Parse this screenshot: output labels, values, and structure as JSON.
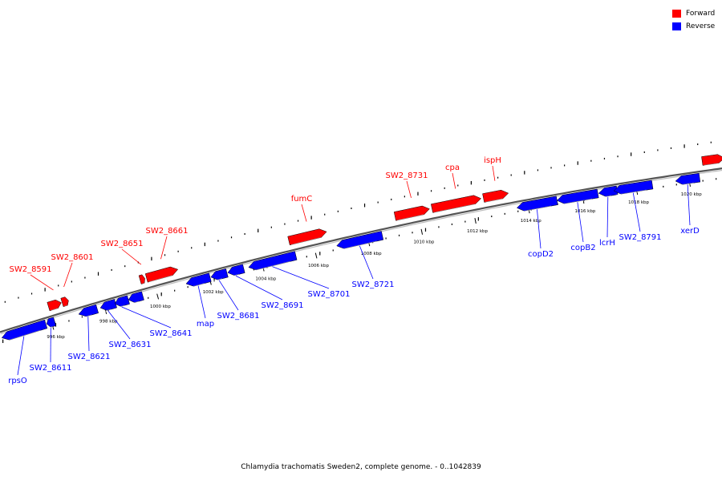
{
  "caption": "Chlamydia trachomatis Sweden2, complete genome. - 0..1042839",
  "colors": {
    "forward": "#ff0000",
    "reverse": "#0000ff",
    "backbone": "#888888"
  },
  "legend": [
    {
      "label": "Forward",
      "color": "#ff0000"
    },
    {
      "label": "Reverse",
      "color": "#0000ff"
    }
  ],
  "axis_labels": [
    "996 kbp",
    "998 kbp",
    "1000 kbp",
    "1002 kbp",
    "1004 kbp",
    "1006 kbp",
    "1008 kbp",
    "1010 kbp",
    "1012 kbp",
    "1014 kbp",
    "1016 kbp",
    "1018 kbp",
    "1020 kbp"
  ],
  "forward_genes": [
    "SW2_8591",
    "SW2_8601",
    "SW2_8651",
    "SW2_8661",
    "fumC",
    "SW2_8731",
    "cpa",
    "ispH"
  ],
  "reverse_genes": [
    "rpsO",
    "SW2_8611",
    "SW2_8621",
    "SW2_8631",
    "SW2_8641",
    "map",
    "SW2_8681",
    "SW2_8691",
    "SW2_8701",
    "SW2_8721",
    "copD2",
    "copB2",
    "lcrH",
    "SW2_8791",
    "xerD"
  ]
}
